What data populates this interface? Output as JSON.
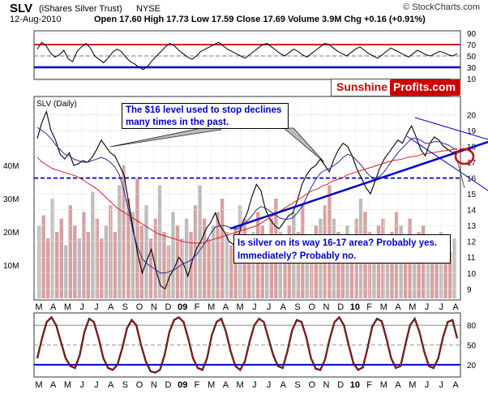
{
  "header": {
    "ticker": "SLV",
    "name": "(iShares Silver Trust)",
    "exchange": "NYSE",
    "date": "12-Aug-2010",
    "ohlc": "Open 17.60  High 17.73  Low 17.59  Close 17.69  Volume 3.9M  Chg +0.16 (+0.91%)",
    "source": "© StockCharts.com"
  },
  "brand": {
    "left": "Sunshine",
    "right": "Profits.com"
  },
  "colors": {
    "price": "#000000",
    "ma_short": "#1f2f8f",
    "ma_long": "#d42020",
    "level": "#0000cc",
    "brand_red": "#cc0000",
    "volume": "#d8a0a0",
    "annotation_fill": "#ffffff"
  },
  "panels": {
    "main_label": "SLV (Daily)"
  },
  "annotations": {
    "a1": "The $16 level used to stop declines many times in the past.",
    "a2": "Is silver on its way 16-17 area? Probably yes. Immediately? Probably no."
  },
  "chart_data": [
    {
      "type": "line",
      "panel": "rsi",
      "ylim": [
        10,
        90
      ],
      "yticks": [
        10,
        30,
        50,
        70,
        90
      ],
      "levels": [
        30,
        70
      ],
      "grid": true,
      "values": [
        62,
        74,
        68,
        55,
        48,
        52,
        60,
        45,
        40,
        58,
        66,
        72,
        64,
        50,
        44,
        38,
        46,
        56,
        62,
        58,
        48,
        40,
        36,
        30,
        26,
        32,
        42,
        50,
        58,
        66,
        72,
        68,
        60,
        54,
        48,
        44,
        50,
        58,
        62,
        66,
        70,
        74,
        68,
        62,
        58,
        54,
        50,
        46,
        52,
        58,
        64,
        70,
        72,
        66,
        60,
        54,
        50,
        56,
        62,
        58,
        52,
        48,
        54,
        60,
        66,
        72,
        70,
        64,
        58,
        54,
        50,
        56,
        62,
        66,
        60,
        54,
        50,
        46,
        52,
        58,
        64,
        60,
        56,
        52,
        48,
        54,
        60,
        56,
        52,
        50,
        54,
        58,
        56,
        52,
        50,
        54
      ]
    },
    {
      "type": "line",
      "panel": "price",
      "ylim": [
        8.4,
        21
      ],
      "yticks": [
        9,
        10,
        11,
        12,
        13,
        14,
        15,
        16,
        17,
        18,
        19,
        20
      ],
      "xticks": [
        "M",
        "A",
        "M",
        "J",
        "J",
        "A",
        "S",
        "O",
        "N",
        "D",
        "09",
        "F",
        "M",
        "A",
        "M",
        "J",
        "J",
        "A",
        "S",
        "O",
        "N",
        "D",
        "10",
        "F",
        "M",
        "A",
        "M",
        "J",
        "J",
        "A"
      ],
      "levels": [
        16
      ],
      "series": [
        {
          "values": [
            18.5,
            19.5,
            20.2,
            19.0,
            18.4,
            17.5,
            17.2,
            17.6,
            16.8,
            16.9,
            17.1,
            17.0,
            17.3,
            17.8,
            18.4,
            18.0,
            17.6,
            17.4,
            16.8,
            16.2,
            14.5,
            12.8,
            11.2,
            10.0,
            10.8,
            11.5,
            10.2,
            9.2,
            9.0,
            9.8,
            10.3,
            11.0,
            10.6,
            9.8,
            10.8,
            11.6,
            12.1,
            12.8,
            13.2,
            13.8,
            13.0,
            12.6,
            12.0,
            11.8,
            12.3,
            13.2,
            13.8,
            14.8,
            15.6,
            15.2,
            14.0,
            13.4,
            13.0,
            12.8,
            13.2,
            13.6,
            13.8,
            14.6,
            15.6,
            16.2,
            16.6,
            16.8,
            17.2,
            16.8,
            16.4,
            17.2,
            17.8,
            18.2,
            18.0,
            17.4,
            16.6,
            16.0,
            15.4,
            15.0,
            15.8,
            16.6,
            17.2,
            17.6,
            18.0,
            18.4,
            18.2,
            18.8,
            19.3,
            18.6,
            17.8,
            17.4,
            18.2,
            18.6,
            18.4,
            18.0,
            17.8,
            17.6,
            17.7
          ]
        },
        {
          "values": [
            19.2,
            19.0,
            18.8,
            18.5,
            18.1,
            17.8,
            17.5,
            17.4,
            17.2,
            17.1,
            17.0,
            17.0,
            17.1,
            17.2,
            17.3,
            17.2,
            17.0,
            16.7,
            16.2,
            15.2,
            14.0,
            12.6,
            11.6,
            10.9,
            10.6,
            10.4,
            10.2,
            10.0,
            10.0,
            10.1,
            10.2,
            10.4,
            10.6,
            10.7,
            10.9,
            11.2,
            11.6,
            12.0,
            12.5,
            12.9,
            13.0,
            13.0,
            12.9,
            12.8,
            12.8,
            13.0,
            13.3,
            13.6,
            14.0,
            14.2,
            14.1,
            13.9,
            13.7,
            13.5,
            13.4,
            13.4,
            13.5,
            13.8,
            14.2,
            14.8,
            15.4,
            15.9,
            16.3,
            16.5,
            16.6,
            16.8,
            17.0,
            17.3,
            17.5,
            17.4,
            17.1,
            16.8,
            16.4,
            16.1,
            16.0,
            16.1,
            16.4,
            16.8,
            17.2,
            17.6,
            17.9,
            18.2,
            18.5,
            18.5,
            18.4,
            18.2,
            18.2,
            18.3,
            18.3,
            18.2,
            18.1,
            17.9,
            17.8
          ]
        },
        {
          "values": [
            17.3,
            17.0,
            16.8,
            16.6,
            16.5,
            16.4,
            16.3,
            16.2,
            16.1,
            15.9,
            15.7,
            15.5,
            15.3,
            15.0,
            14.7,
            14.4,
            14.1,
            13.9,
            13.7,
            13.5,
            13.3,
            13.1,
            12.9,
            12.7,
            12.5,
            12.4,
            12.3,
            12.2,
            12.1,
            12.0,
            11.95,
            11.9,
            11.9,
            11.9,
            12.0,
            12.1,
            12.2,
            12.3,
            12.4,
            12.5,
            12.6,
            12.7,
            12.8,
            12.9,
            13.0,
            13.2,
            13.4,
            13.6,
            13.8,
            14.0,
            14.2,
            14.4,
            14.6,
            14.8,
            15.0,
            15.2,
            15.3,
            15.5,
            15.6,
            15.8,
            15.9,
            16.0,
            16.2,
            16.3,
            16.4,
            16.5,
            16.6,
            16.7,
            16.8,
            16.9,
            17.0,
            17.1,
            17.15,
            17.2,
            17.3,
            17.35,
            17.4,
            17.5,
            17.55,
            17.6,
            17.65,
            17.7,
            17.75,
            17.8,
            17.85
          ]
        }
      ],
      "volume": {
        "ylim": [
          0,
          60
        ],
        "yticks": [
          "10M",
          "20M",
          "30M",
          "40M"
        ],
        "values": [
          22,
          25,
          18,
          30,
          20,
          24,
          16,
          28,
          22,
          18,
          26,
          20,
          32,
          24,
          18,
          22,
          28,
          20,
          34,
          40,
          30,
          26,
          36,
          22,
          28,
          18,
          24,
          34,
          20,
          16,
          26,
          22,
          18,
          24,
          20,
          28,
          34,
          24,
          18,
          22,
          26,
          30,
          20,
          16,
          22,
          28,
          24,
          18,
          20,
          26,
          22,
          16,
          24,
          30,
          20,
          18,
          22,
          26,
          20,
          28,
          18,
          16,
          22,
          24,
          28,
          34,
          24,
          20,
          18,
          22,
          16,
          24,
          30,
          26,
          20,
          18,
          22,
          24,
          16,
          20,
          26,
          22,
          18,
          24,
          16,
          20,
          22,
          14,
          18,
          16,
          20,
          18,
          14,
          18
        ]
      }
    },
    {
      "type": "line",
      "panel": "stochastic",
      "ylim": [
        5,
        95
      ],
      "yticks": [
        20,
        50,
        80
      ],
      "levels": [
        20,
        80
      ],
      "values": [
        30,
        60,
        85,
        92,
        80,
        55,
        30,
        18,
        15,
        35,
        70,
        90,
        85,
        60,
        30,
        15,
        12,
        20,
        45,
        75,
        88,
        80,
        50,
        25,
        10,
        8,
        12,
        35,
        70,
        88,
        92,
        85,
        60,
        30,
        15,
        12,
        30,
        65,
        85,
        90,
        70,
        40,
        18,
        12,
        25,
        55,
        80,
        90,
        85,
        60,
        35,
        18,
        15,
        40,
        72,
        88,
        85,
        62,
        30,
        14,
        12,
        28,
        60,
        85,
        92,
        80,
        50,
        22,
        12,
        16,
        45,
        78,
        90,
        86,
        60,
        30,
        15,
        18,
        50,
        80,
        90,
        70,
        40,
        18,
        15,
        30,
        62,
        85,
        88,
        60
      ]
    }
  ]
}
